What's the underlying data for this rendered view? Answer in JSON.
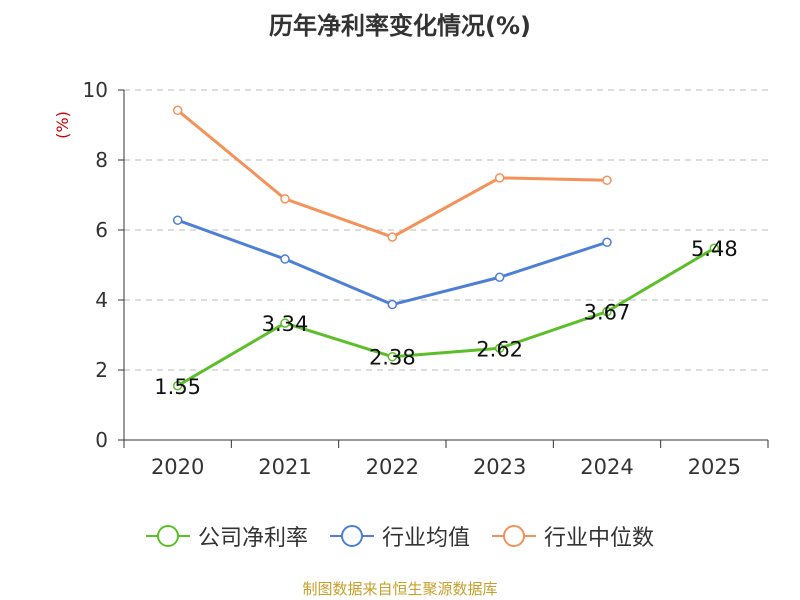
{
  "chart_data": {
    "type": "line",
    "title": "历年净利率变化情况(%)",
    "ylabel": "(%)",
    "xlabel": "",
    "categories": [
      "2020",
      "2021",
      "2022",
      "2023",
      "2024",
      "2025"
    ],
    "ylim": [
      0,
      10
    ],
    "yticks": [
      0,
      2,
      4,
      6,
      8,
      10
    ],
    "grid": "horizontal-dashed",
    "legend_position": "bottom",
    "series": [
      {
        "name": "公司净利率",
        "color": "#5cbf2a",
        "values": [
          1.55,
          3.34,
          2.38,
          2.62,
          3.67,
          5.48
        ],
        "show_labels": true
      },
      {
        "name": "行业均值",
        "color": "#4e7fd6",
        "values": [
          6.28,
          5.17,
          3.87,
          4.65,
          5.65,
          null
        ],
        "show_labels": false
      },
      {
        "name": "行业中位数",
        "color": "#f4925a",
        "values": [
          9.42,
          6.89,
          5.8,
          7.49,
          7.42,
          null
        ],
        "show_labels": false
      }
    ]
  },
  "colors": {
    "ylabel": "#cc0000",
    "source": "#c8a02a"
  },
  "source": "制图数据来自恒生聚源数据库"
}
